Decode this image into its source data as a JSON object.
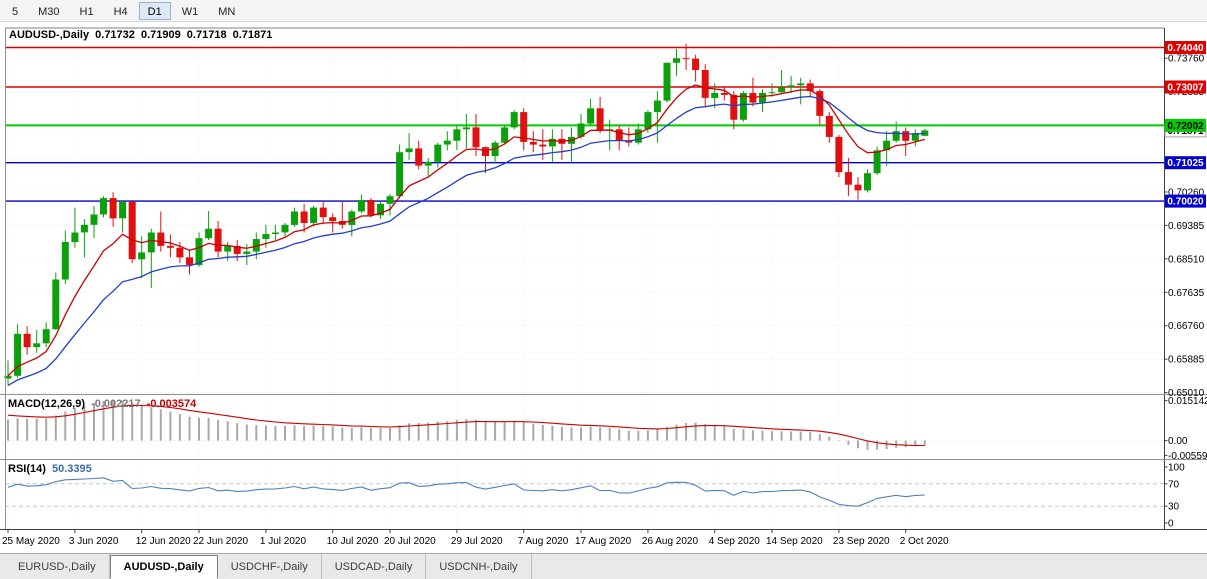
{
  "toolbar": {
    "timeframes": [
      {
        "label": "5",
        "active": false
      },
      {
        "label": "M30",
        "active": false
      },
      {
        "label": "H1",
        "active": false
      },
      {
        "label": "H4",
        "active": false
      },
      {
        "label": "D1",
        "active": true
      },
      {
        "label": "W1",
        "active": false
      },
      {
        "label": "MN",
        "active": false
      }
    ]
  },
  "ohlc_title": {
    "symbol": "AUDUSD-,Daily",
    "open": "0.71732",
    "high": "0.71909",
    "low": "0.71718",
    "close": "0.71871"
  },
  "indicators": {
    "macd": {
      "name": "MACD(12,26,9)",
      "main": "-0.002217",
      "signal": "-0.003574"
    },
    "rsi": {
      "name": "RSI(14)",
      "value": "50.3395"
    }
  },
  "price_axis": {
    "grid_values": [
      0.7376,
      0.72885,
      0.7201,
      0.71135,
      0.7026,
      0.69385,
      0.6851,
      0.67635,
      0.6676,
      0.65885,
      0.6501
    ],
    "grid_labels": [
      {
        "text": "0.73760",
        "value": 0.7376
      },
      {
        "text": "0.72885",
        "value": 0.72885
      },
      {
        "text": "0.70260",
        "value": 0.7026
      },
      {
        "text": "0.69385",
        "value": 0.69385
      },
      {
        "text": "0.68510",
        "value": 0.6851
      },
      {
        "text": "0.67635",
        "value": 0.67635
      },
      {
        "text": "0.66760",
        "value": 0.6676
      },
      {
        "text": "0.65885",
        "value": 0.65885
      },
      {
        "text": "0.65010",
        "value": 0.6501
      }
    ],
    "current": {
      "text": "0.71871",
      "value": 0.71871
    }
  },
  "hlines": [
    {
      "text": "0.74040",
      "value": 0.7404,
      "color": "#e00000",
      "text_color": "#ffffff",
      "width": 1.4
    },
    {
      "text": "0.73007",
      "value": 0.73007,
      "color": "#e00000",
      "text_color": "#ffffff",
      "width": 1.4
    },
    {
      "text": "0.72002",
      "value": 0.72002,
      "color": "#00cc00",
      "text_color": "#000000",
      "width": 2
    },
    {
      "text": "0.71025",
      "value": 0.71025,
      "color": "#0000d0",
      "text_color": "#ffffff",
      "width": 1.4
    },
    {
      "text": "0.70020",
      "value": 0.7002,
      "color": "#0000d0",
      "text_color": "#ffffff",
      "width": 1.4
    }
  ],
  "macd_axis": [
    {
      "text": "0.015142",
      "value": 0.015142
    },
    {
      "text": "0.00",
      "value": 0
    },
    {
      "text": "-0.005590",
      "value": -0.00559
    }
  ],
  "rsi_axis": [
    {
      "text": "100",
      "value": 100
    },
    {
      "text": "70",
      "value": 70
    },
    {
      "text": "30",
      "value": 30
    },
    {
      "text": "0",
      "value": 0
    }
  ],
  "rsi_levels": [
    70,
    30
  ],
  "tabs": [
    {
      "label": "EURUSD-,Daily",
      "active": false
    },
    {
      "label": "AUDUSD-,Daily",
      "active": true
    },
    {
      "label": "USDCHF-,Daily",
      "active": false
    },
    {
      "label": "USDCAD-,Daily",
      "active": false
    },
    {
      "label": "USDCNH-,Daily",
      "active": false
    }
  ],
  "colors": {
    "candle_up": "#0da00d",
    "candle_down": "#e01010",
    "ma_fast": "#cc0000",
    "ma_slow": "#2340c8",
    "macd_bar": "#a8a8a8",
    "macd_signal": "#cc0000",
    "rsi_line": "#4f81bd",
    "level_red": "#e00000",
    "level_green": "#00cc00",
    "level_blue": "#0000d0"
  },
  "chart_data": {
    "type": "candlestick",
    "title": "AUDUSD-,Daily",
    "symbol": "AUDUSD",
    "timeframe": "Daily",
    "last_ohlc": {
      "open": 0.71732,
      "high": 0.71909,
      "low": 0.71718,
      "close": 0.71871
    },
    "y_range": [
      0.65,
      0.7455
    ],
    "x_tick_labels": [
      {
        "index": 0,
        "label": "25 May 2020"
      },
      {
        "index": 7,
        "label": "3 Jun 2020"
      },
      {
        "index": 14,
        "label": "12 Jun 2020"
      },
      {
        "index": 20,
        "label": "22 Jun 2020"
      },
      {
        "index": 27,
        "label": "1 Jul 2020"
      },
      {
        "index": 34,
        "label": "10 Jul 2020"
      },
      {
        "index": 40,
        "label": "20 Jul 2020"
      },
      {
        "index": 47,
        "label": "29 Jul 2020"
      },
      {
        "index": 54,
        "label": "7 Aug 2020"
      },
      {
        "index": 60,
        "label": "17 Aug 2020"
      },
      {
        "index": 67,
        "label": "26 Aug 2020"
      },
      {
        "index": 74,
        "label": "4 Sep 2020"
      },
      {
        "index": 80,
        "label": "14 Sep 2020"
      },
      {
        "index": 87,
        "label": "23 Sep 2020"
      },
      {
        "index": 94,
        "label": "2 Oct 2020"
      }
    ],
    "candles": [
      [
        0.6538,
        0.6585,
        0.652,
        0.6545
      ],
      [
        0.6545,
        0.668,
        0.654,
        0.6655
      ],
      [
        0.6655,
        0.6675,
        0.66,
        0.662
      ],
      [
        0.662,
        0.6665,
        0.6605,
        0.663
      ],
      [
        0.663,
        0.6685,
        0.662,
        0.6667
      ],
      [
        0.6667,
        0.6815,
        0.6665,
        0.6797
      ],
      [
        0.6797,
        0.6925,
        0.6785,
        0.6895
      ],
      [
        0.6895,
        0.6985,
        0.688,
        0.692
      ],
      [
        0.692,
        0.6955,
        0.6855,
        0.694
      ],
      [
        0.694,
        0.699,
        0.6905,
        0.6967
      ],
      [
        0.6967,
        0.7015,
        0.696,
        0.701
      ],
      [
        0.701,
        0.7025,
        0.6935,
        0.6957
      ],
      [
        0.6957,
        0.7005,
        0.692,
        0.7
      ],
      [
        0.7,
        0.7005,
        0.684,
        0.685
      ],
      [
        0.685,
        0.691,
        0.68,
        0.6868
      ],
      [
        0.6868,
        0.693,
        0.6775,
        0.692
      ],
      [
        0.692,
        0.6975,
        0.687,
        0.6885
      ],
      [
        0.6885,
        0.6915,
        0.6855,
        0.688
      ],
      [
        0.688,
        0.6895,
        0.684,
        0.6855
      ],
      [
        0.6855,
        0.6875,
        0.681,
        0.6835
      ],
      [
        0.6835,
        0.692,
        0.683,
        0.6905
      ],
      [
        0.6905,
        0.6976,
        0.69,
        0.693
      ],
      [
        0.693,
        0.695,
        0.6855,
        0.687
      ],
      [
        0.687,
        0.6895,
        0.6845,
        0.6885
      ],
      [
        0.6885,
        0.69,
        0.6845,
        0.6864
      ],
      [
        0.6864,
        0.689,
        0.6835,
        0.687
      ],
      [
        0.687,
        0.692,
        0.685,
        0.6903
      ],
      [
        0.6903,
        0.694,
        0.688,
        0.6916
      ],
      [
        0.6916,
        0.694,
        0.69,
        0.692
      ],
      [
        0.692,
        0.6945,
        0.691,
        0.694
      ],
      [
        0.694,
        0.6985,
        0.6935,
        0.6975
      ],
      [
        0.6975,
        0.6995,
        0.692,
        0.6945
      ],
      [
        0.6945,
        0.699,
        0.6935,
        0.6985
      ],
      [
        0.6985,
        0.7,
        0.6945,
        0.696
      ],
      [
        0.696,
        0.697,
        0.692,
        0.695
      ],
      [
        0.695,
        0.7,
        0.693,
        0.694
      ],
      [
        0.694,
        0.698,
        0.691,
        0.6975
      ],
      [
        0.6975,
        0.702,
        0.697,
        0.7005
      ],
      [
        0.7005,
        0.701,
        0.696,
        0.6965
      ],
      [
        0.6965,
        0.7,
        0.6955,
        0.6995
      ],
      [
        0.6995,
        0.702,
        0.6965,
        0.7015
      ],
      [
        0.7015,
        0.715,
        0.701,
        0.713
      ],
      [
        0.713,
        0.718,
        0.711,
        0.714
      ],
      [
        0.714,
        0.716,
        0.7085,
        0.7095
      ],
      [
        0.7095,
        0.7115,
        0.7065,
        0.7105
      ],
      [
        0.7105,
        0.7155,
        0.709,
        0.715
      ],
      [
        0.715,
        0.7185,
        0.7135,
        0.716
      ],
      [
        0.716,
        0.72,
        0.7135,
        0.719
      ],
      [
        0.719,
        0.723,
        0.714,
        0.7195
      ],
      [
        0.7195,
        0.723,
        0.712,
        0.7143
      ],
      [
        0.7143,
        0.7145,
        0.7075,
        0.712
      ],
      [
        0.712,
        0.716,
        0.71,
        0.7155
      ],
      [
        0.7155,
        0.72,
        0.715,
        0.7195
      ],
      [
        0.7195,
        0.724,
        0.719,
        0.7235
      ],
      [
        0.7235,
        0.7245,
        0.7135,
        0.7157
      ],
      [
        0.7157,
        0.7185,
        0.713,
        0.715
      ],
      [
        0.715,
        0.719,
        0.711,
        0.7145
      ],
      [
        0.7145,
        0.719,
        0.7105,
        0.7165
      ],
      [
        0.7165,
        0.719,
        0.711,
        0.7152
      ],
      [
        0.7152,
        0.7195,
        0.7105,
        0.717
      ],
      [
        0.717,
        0.723,
        0.7165,
        0.7205
      ],
      [
        0.7205,
        0.727,
        0.72,
        0.7245
      ],
      [
        0.7245,
        0.7275,
        0.718,
        0.7187
      ],
      [
        0.7187,
        0.7215,
        0.7135,
        0.719
      ],
      [
        0.719,
        0.72,
        0.7135,
        0.716
      ],
      [
        0.716,
        0.7195,
        0.7145,
        0.7155
      ],
      [
        0.7155,
        0.7205,
        0.715,
        0.719
      ],
      [
        0.719,
        0.724,
        0.718,
        0.7235
      ],
      [
        0.7235,
        0.729,
        0.7155,
        0.7265
      ],
      [
        0.7265,
        0.7365,
        0.726,
        0.7364
      ],
      [
        0.7364,
        0.74,
        0.733,
        0.7376
      ],
      [
        0.7376,
        0.7414,
        0.7345,
        0.7375
      ],
      [
        0.7375,
        0.7385,
        0.7315,
        0.7345
      ],
      [
        0.7345,
        0.736,
        0.725,
        0.7272
      ],
      [
        0.7272,
        0.731,
        0.7245,
        0.7285
      ],
      [
        0.7285,
        0.73,
        0.7265,
        0.728
      ],
      [
        0.728,
        0.729,
        0.719,
        0.7215
      ],
      [
        0.7215,
        0.729,
        0.721,
        0.7285
      ],
      [
        0.7285,
        0.7325,
        0.725,
        0.726
      ],
      [
        0.726,
        0.7295,
        0.7235,
        0.7285
      ],
      [
        0.7285,
        0.731,
        0.7275,
        0.7287
      ],
      [
        0.7287,
        0.7345,
        0.7285,
        0.73
      ],
      [
        0.73,
        0.733,
        0.7285,
        0.7305
      ],
      [
        0.7305,
        0.7325,
        0.7255,
        0.731
      ],
      [
        0.731,
        0.732,
        0.7275,
        0.729
      ],
      [
        0.729,
        0.7295,
        0.72,
        0.7225
      ],
      [
        0.7225,
        0.7235,
        0.7155,
        0.717
      ],
      [
        0.717,
        0.7175,
        0.7065,
        0.7078
      ],
      [
        0.7078,
        0.7115,
        0.7015,
        0.7045
      ],
      [
        0.7045,
        0.7065,
        0.7006,
        0.703
      ],
      [
        0.703,
        0.7085,
        0.7025,
        0.7075
      ],
      [
        0.7075,
        0.7145,
        0.707,
        0.7135
      ],
      [
        0.7135,
        0.7185,
        0.7095,
        0.716
      ],
      [
        0.716,
        0.721,
        0.7155,
        0.7185
      ],
      [
        0.7185,
        0.7195,
        0.712,
        0.716
      ],
      [
        0.716,
        0.719,
        0.7145,
        0.718
      ],
      [
        0.7173,
        0.7191,
        0.7172,
        0.7187
      ]
    ],
    "horizontal_levels": [
      {
        "value": 0.7404,
        "color": "red"
      },
      {
        "value": 0.73007,
        "color": "red"
      },
      {
        "value": 0.72002,
        "color": "green"
      },
      {
        "value": 0.71025,
        "color": "blue"
      },
      {
        "value": 0.7002,
        "color": "blue"
      }
    ],
    "indicator_panes": [
      {
        "type": "macd",
        "label": "MACD(12,26,9)",
        "last_main": -0.002217,
        "last_signal": -0.003574,
        "y_axis_labels": [
          0.015142,
          0,
          -0.00559
        ]
      },
      {
        "type": "rsi",
        "label": "RSI(14)",
        "last_value": 50.3395,
        "levels": [
          70,
          30
        ],
        "y_axis_labels": [
          100,
          70,
          30,
          0
        ]
      }
    ]
  }
}
